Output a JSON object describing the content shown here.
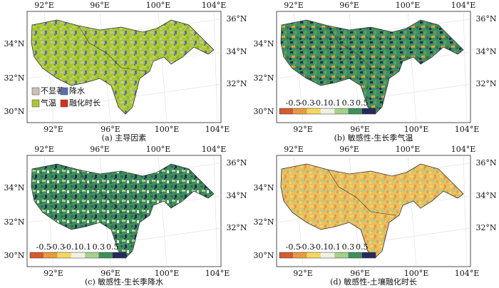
{
  "panels": [
    {
      "caption": "(a) 主导因素",
      "lon_top": [
        "92°E",
        "96°E",
        "100°E",
        "104°E"
      ],
      "lon_bottom": [
        "92°E",
        "96°E",
        "100°E",
        "104°E"
      ],
      "lat_left": [
        "34°N",
        "32°N",
        "30°N"
      ],
      "lat_right": [
        "36°N",
        "34°N",
        "32°N"
      ],
      "legend": [
        {
          "label": "不显著",
          "color": "#c9c0b8"
        },
        {
          "label": "降水",
          "color": "#5a6fb0"
        },
        {
          "label": "气温",
          "color": "#a8c832"
        },
        {
          "label": "融化时长",
          "color": "#d9301e"
        }
      ]
    },
    {
      "caption": "(b) 敏感性-生长季气温",
      "lon_top": [
        "92°E",
        "96°E",
        "100°E",
        "104°E"
      ],
      "lon_bottom": [
        "92°E",
        "96°E",
        "100°E",
        "104°E"
      ],
      "lat_left": [
        "34°N",
        "32°N",
        "30°N"
      ],
      "lat_right": [
        "36°N",
        "34°N",
        "32°N"
      ],
      "colorbar": {
        "labels": [
          "-0.5",
          "-0.3",
          "-0.1",
          "0.1",
          "0.3",
          "0.5"
        ],
        "colors": [
          "#d45a2f",
          "#e89a3e",
          "#f2d660",
          "#f2f0e2",
          "#a6d08c",
          "#3f8f5a",
          "#252a5c"
        ]
      }
    },
    {
      "caption": "(c) 敏感性-生长季降水",
      "lon_top": [
        "92°E",
        "96°E",
        "100°E",
        "104°E"
      ],
      "lon_bottom": [
        "92°E",
        "96°E",
        "100°E",
        "104°E"
      ],
      "lat_left": [
        "34°N",
        "32°N",
        "30°N"
      ],
      "lat_right": [
        "36°N",
        "34°N",
        "32°N"
      ],
      "colorbar": {
        "labels": [
          "-0.5",
          "-0.3",
          "-0.1",
          "0.1",
          "0.3",
          "0.5"
        ],
        "colors": [
          "#d45a2f",
          "#e89a3e",
          "#f2d660",
          "#f2f0e2",
          "#a6d08c",
          "#3f8f5a",
          "#252a5c"
        ]
      }
    },
    {
      "caption": "(d) 敏感性-土壤融化时长",
      "lon_top": [
        "92°E",
        "96°E",
        "100°E",
        "104°E"
      ],
      "lon_bottom": [
        "92°E",
        "96°E",
        "100°E",
        "104°E"
      ],
      "lat_left": [
        "34°N",
        "32°N",
        "30°N"
      ],
      "lat_right": [
        "36°N",
        "34°N",
        "32°N"
      ],
      "colorbar": {
        "labels": [
          "-0.5",
          "-0.3",
          "-0.1",
          "0.1",
          "0.3",
          "0.5"
        ],
        "colors": [
          "#d45a2f",
          "#e89a3e",
          "#f2d660",
          "#f2f0e2",
          "#a6d08c",
          "#3f8f5a",
          "#252a5c"
        ]
      }
    }
  ]
}
